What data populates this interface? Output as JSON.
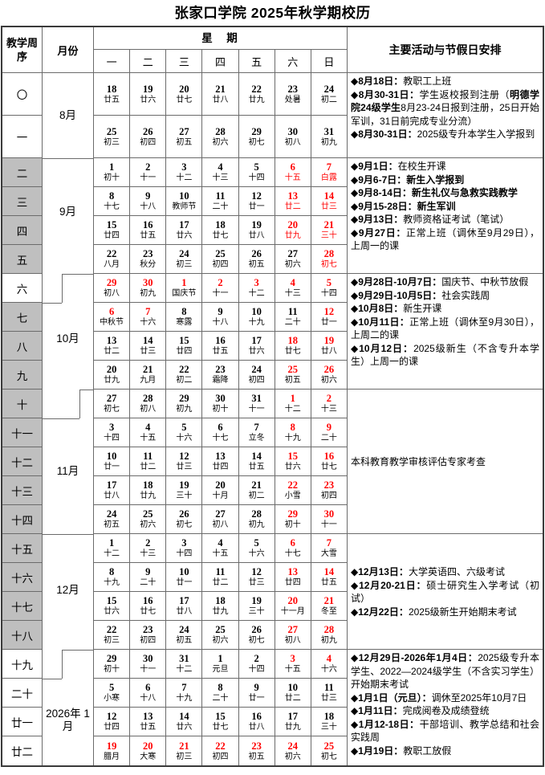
{
  "title": "张家口学院 2025年秋学期校历",
  "header": {
    "week_col": "教学周序",
    "month_col": "月份",
    "week_group": "星　期",
    "days": [
      "一",
      "二",
      "三",
      "四",
      "五",
      "六",
      "日"
    ],
    "activities_col": "主要活动与节假日安排"
  },
  "months": [
    "8月",
    "9月",
    "10月",
    "11月",
    "12月",
    "2026年 1月"
  ],
  "weeks": [
    {
      "num": "〇",
      "shaded": false,
      "days": [
        [
          "18",
          "廿五",
          0
        ],
        [
          "19",
          "廿六",
          0
        ],
        [
          "20",
          "廿七",
          0
        ],
        [
          "21",
          "廿八",
          0
        ],
        [
          "22",
          "廿九",
          0
        ],
        [
          "23",
          "处暑",
          0
        ],
        [
          "24",
          "初二",
          0
        ]
      ]
    },
    {
      "num": "一",
      "shaded": false,
      "days": [
        [
          "25",
          "初三",
          0
        ],
        [
          "26",
          "初四",
          0
        ],
        [
          "27",
          "初五",
          0
        ],
        [
          "28",
          "初六",
          0
        ],
        [
          "29",
          "初七",
          0
        ],
        [
          "30",
          "初八",
          0
        ],
        [
          "31",
          "初九",
          0
        ]
      ]
    },
    {
      "num": "二",
      "shaded": true,
      "days": [
        [
          "1",
          "初十",
          0
        ],
        [
          "2",
          "十一",
          0
        ],
        [
          "3",
          "十二",
          0
        ],
        [
          "4",
          "十三",
          0
        ],
        [
          "5",
          "十四",
          0
        ],
        [
          "6",
          "十五",
          2
        ],
        [
          "7",
          "白露",
          2
        ]
      ]
    },
    {
      "num": "三",
      "shaded": true,
      "days": [
        [
          "8",
          "十七",
          0
        ],
        [
          "9",
          "十八",
          0
        ],
        [
          "10",
          "教师节",
          0
        ],
        [
          "11",
          "二十",
          0
        ],
        [
          "12",
          "廿一",
          0
        ],
        [
          "13",
          "廿二",
          2
        ],
        [
          "14",
          "廿三",
          2
        ]
      ]
    },
    {
      "num": "四",
      "shaded": true,
      "days": [
        [
          "15",
          "廿四",
          0
        ],
        [
          "16",
          "廿五",
          0
        ],
        [
          "17",
          "廿六",
          0
        ],
        [
          "18",
          "廿七",
          0
        ],
        [
          "19",
          "廿八",
          0
        ],
        [
          "20",
          "廿九",
          2
        ],
        [
          "21",
          "三十",
          2
        ]
      ]
    },
    {
      "num": "五",
      "shaded": true,
      "days": [
        [
          "22",
          "八月",
          0
        ],
        [
          "23",
          "秋分",
          0
        ],
        [
          "24",
          "初三",
          0
        ],
        [
          "25",
          "初四",
          0
        ],
        [
          "26",
          "初五",
          0
        ],
        [
          "27",
          "初六",
          0
        ],
        [
          "28",
          "初七",
          2
        ]
      ]
    },
    {
      "num": "六",
      "shaded": false,
      "days": [
        [
          "29",
          "初八",
          1
        ],
        [
          "30",
          "初九",
          1
        ],
        [
          "1",
          "国庆节",
          1
        ],
        [
          "2",
          "十一",
          1
        ],
        [
          "3",
          "十二",
          1
        ],
        [
          "4",
          "十三",
          1
        ],
        [
          "5",
          "十四",
          1
        ]
      ]
    },
    {
      "num": "七",
      "shaded": true,
      "days": [
        [
          "6",
          "中秋节",
          1
        ],
        [
          "7",
          "十六",
          1
        ],
        [
          "8",
          "寒露",
          0
        ],
        [
          "9",
          "十八",
          0
        ],
        [
          "10",
          "十九",
          0
        ],
        [
          "11",
          "二十",
          0
        ],
        [
          "12",
          "廿一",
          1
        ]
      ]
    },
    {
      "num": "八",
      "shaded": true,
      "days": [
        [
          "13",
          "廿二",
          0
        ],
        [
          "14",
          "廿三",
          0
        ],
        [
          "15",
          "廿四",
          0
        ],
        [
          "16",
          "廿五",
          0
        ],
        [
          "17",
          "廿六",
          0
        ],
        [
          "18",
          "廿七",
          1
        ],
        [
          "19",
          "廿八",
          1
        ]
      ]
    },
    {
      "num": "九",
      "shaded": true,
      "days": [
        [
          "20",
          "廿九",
          0
        ],
        [
          "21",
          "九月",
          0
        ],
        [
          "22",
          "初二",
          0
        ],
        [
          "23",
          "霜降",
          0
        ],
        [
          "24",
          "初四",
          0
        ],
        [
          "25",
          "初五",
          1
        ],
        [
          "26",
          "初六",
          1
        ]
      ]
    },
    {
      "num": "十",
      "shaded": true,
      "days": [
        [
          "27",
          "初七",
          0
        ],
        [
          "28",
          "初八",
          0
        ],
        [
          "29",
          "初九",
          0
        ],
        [
          "30",
          "初十",
          0
        ],
        [
          "31",
          "十一",
          0
        ],
        [
          "1",
          "十二",
          1
        ],
        [
          "2",
          "十三",
          1
        ]
      ]
    },
    {
      "num": "十一",
      "shaded": true,
      "days": [
        [
          "3",
          "十四",
          0
        ],
        [
          "4",
          "十五",
          0
        ],
        [
          "5",
          "十六",
          0
        ],
        [
          "6",
          "十七",
          0
        ],
        [
          "7",
          "立冬",
          0
        ],
        [
          "8",
          "十九",
          1
        ],
        [
          "9",
          "二十",
          1
        ]
      ]
    },
    {
      "num": "十二",
      "shaded": true,
      "days": [
        [
          "10",
          "廿一",
          0
        ],
        [
          "11",
          "廿二",
          0
        ],
        [
          "12",
          "廿三",
          0
        ],
        [
          "13",
          "廿四",
          0
        ],
        [
          "14",
          "廿五",
          0
        ],
        [
          "15",
          "廿六",
          1
        ],
        [
          "16",
          "廿七",
          1
        ]
      ]
    },
    {
      "num": "十三",
      "shaded": true,
      "days": [
        [
          "17",
          "廿八",
          0
        ],
        [
          "18",
          "廿九",
          0
        ],
        [
          "19",
          "三十",
          0
        ],
        [
          "20",
          "十月",
          0
        ],
        [
          "21",
          "初二",
          0
        ],
        [
          "22",
          "小雪",
          1
        ],
        [
          "23",
          "初四",
          1
        ]
      ]
    },
    {
      "num": "十四",
      "shaded": true,
      "days": [
        [
          "24",
          "初五",
          0
        ],
        [
          "25",
          "初六",
          0
        ],
        [
          "26",
          "初七",
          0
        ],
        [
          "27",
          "初八",
          0
        ],
        [
          "28",
          "初九",
          0
        ],
        [
          "29",
          "初十",
          1
        ],
        [
          "30",
          "十一",
          1
        ]
      ]
    },
    {
      "num": "十五",
      "shaded": true,
      "days": [
        [
          "1",
          "十二",
          0
        ],
        [
          "2",
          "十三",
          0
        ],
        [
          "3",
          "十四",
          0
        ],
        [
          "4",
          "十五",
          0
        ],
        [
          "5",
          "十六",
          0
        ],
        [
          "6",
          "十七",
          1
        ],
        [
          "7",
          "大雪",
          1
        ]
      ]
    },
    {
      "num": "十六",
      "shaded": true,
      "days": [
        [
          "8",
          "十九",
          0
        ],
        [
          "9",
          "二十",
          0
        ],
        [
          "10",
          "廿一",
          0
        ],
        [
          "11",
          "廿二",
          0
        ],
        [
          "12",
          "廿三",
          0
        ],
        [
          "13",
          "廿四",
          1
        ],
        [
          "14",
          "廿五",
          1
        ]
      ]
    },
    {
      "num": "十七",
      "shaded": true,
      "days": [
        [
          "15",
          "廿六",
          0
        ],
        [
          "16",
          "廿七",
          0
        ],
        [
          "17",
          "廿八",
          0
        ],
        [
          "18",
          "廿九",
          0
        ],
        [
          "19",
          "三十",
          0
        ],
        [
          "20",
          "十一月",
          1
        ],
        [
          "21",
          "冬至",
          1
        ]
      ]
    },
    {
      "num": "十八",
      "shaded": true,
      "days": [
        [
          "22",
          "初三",
          0
        ],
        [
          "23",
          "初四",
          0
        ],
        [
          "24",
          "初五",
          0
        ],
        [
          "25",
          "初六",
          0
        ],
        [
          "26",
          "初七",
          0
        ],
        [
          "27",
          "初八",
          1
        ],
        [
          "28",
          "初九",
          1
        ]
      ]
    },
    {
      "num": "十九",
      "shaded": false,
      "days": [
        [
          "29",
          "初十",
          0
        ],
        [
          "30",
          "十一",
          0
        ],
        [
          "31",
          "十二",
          0
        ],
        [
          "1",
          "元旦",
          0
        ],
        [
          "2",
          "十四",
          0
        ],
        [
          "3",
          "十五",
          1
        ],
        [
          "4",
          "十六",
          1
        ]
      ]
    },
    {
      "num": "二十",
      "shaded": false,
      "days": [
        [
          "5",
          "小寒",
          0
        ],
        [
          "6",
          "十八",
          0
        ],
        [
          "7",
          "十九",
          0
        ],
        [
          "8",
          "二十",
          0
        ],
        [
          "9",
          "廿一",
          0
        ],
        [
          "10",
          "廿二",
          0
        ],
        [
          "11",
          "廿三",
          0
        ]
      ]
    },
    {
      "num": "廿一",
      "shaded": false,
      "days": [
        [
          "12",
          "廿四",
          0
        ],
        [
          "13",
          "廿五",
          0
        ],
        [
          "14",
          "廿六",
          0
        ],
        [
          "15",
          "廿七",
          0
        ],
        [
          "16",
          "廿八",
          0
        ],
        [
          "17",
          "廿九",
          0
        ],
        [
          "18",
          "三十",
          0
        ]
      ]
    },
    {
      "num": "廿二",
      "shaded": false,
      "days": [
        [
          "19",
          "腊月",
          1
        ],
        [
          "20",
          "大寒",
          1
        ],
        [
          "21",
          "初三",
          1
        ],
        [
          "22",
          "初四",
          1
        ],
        [
          "23",
          "初五",
          1
        ],
        [
          "24",
          "初六",
          1
        ],
        [
          "25",
          "初七",
          1
        ]
      ]
    }
  ],
  "activities": [
    {
      "items": [
        {
          "segs": [
            {
              "t": "◆8月18日：",
              "b": true
            },
            {
              "t": "教职工上班",
              "b": false
            }
          ]
        },
        {
          "segs": [
            {
              "t": "◆8月30-31日：",
              "b": true
            },
            {
              "t": "学生返校报到注册（",
              "b": false
            },
            {
              "t": "明德学院24级学生",
              "b": true
            },
            {
              "t": "8月23-24日报到注册，25日开始军训，31日前完成专业分流）",
              "b": false
            }
          ]
        },
        {
          "segs": [
            {
              "t": "◆8月30-31日：",
              "b": true
            },
            {
              "t": "2025级专升本学生入学报到",
              "b": false
            }
          ]
        }
      ]
    },
    {
      "items": [
        {
          "segs": [
            {
              "t": "◆9月1日：",
              "b": true
            },
            {
              "t": "在校生开课",
              "b": false
            }
          ]
        },
        {
          "segs": [
            {
              "t": "◆9月6-7日：",
              "b": true
            },
            {
              "t": "新生入学报到",
              "b": true
            }
          ]
        },
        {
          "segs": [
            {
              "t": "◆9月8-14日：",
              "b": true
            },
            {
              "t": "新生礼仪与急救实践教学",
              "b": true
            }
          ]
        },
        {
          "segs": [
            {
              "t": "◆9月15-28日：",
              "b": true
            },
            {
              "t": "新生军训",
              "b": true
            }
          ]
        },
        {
          "segs": [
            {
              "t": "◆9月13日：",
              "b": true
            },
            {
              "t": "教师资格证考试（笔试）",
              "b": false
            }
          ]
        },
        {
          "segs": [
            {
              "t": "◆9月27日：",
              "b": true
            },
            {
              "t": "正常上班（调休至9月29日），上周一的课",
              "b": false
            }
          ]
        }
      ]
    },
    {
      "items": [
        {
          "segs": [
            {
              "t": "◆9月28日-10月7日：",
              "b": true
            },
            {
              "t": "国庆节、中秋节放假",
              "b": false
            }
          ]
        },
        {
          "segs": [
            {
              "t": "◆9月29日-10月5日：",
              "b": true
            },
            {
              "t": "社会实践周",
              "b": false
            }
          ]
        },
        {
          "segs": [
            {
              "t": "◆10月8日：",
              "b": true
            },
            {
              "t": "新生开课",
              "b": false
            }
          ]
        },
        {
          "segs": [
            {
              "t": "◆10月11日：",
              "b": true
            },
            {
              "t": "正常上班（调休至9月30日），上周二的课",
              "b": false
            }
          ]
        },
        {
          "segs": [
            {
              "t": "◆10月12日：",
              "b": true
            },
            {
              "t": "2025级新生（不含专升本学生）上周一的课",
              "b": false
            }
          ]
        }
      ]
    },
    {
      "items": [
        {
          "segs": [
            {
              "t": "本科教育教学审核评估专家考查",
              "b": false
            }
          ]
        }
      ]
    },
    {
      "items": [
        {
          "segs": [
            {
              "t": "◆12月13日：",
              "b": true
            },
            {
              "t": "大学英语四、六级考试",
              "b": false
            }
          ]
        },
        {
          "segs": [
            {
              "t": "◆12月20-21日：",
              "b": true
            },
            {
              "t": "硕士研究生入学考试（初试）",
              "b": false
            }
          ]
        },
        {
          "segs": [
            {
              "t": "◆12月22日：",
              "b": true
            },
            {
              "t": "2025级新生开始期末考试",
              "b": false
            }
          ]
        }
      ]
    },
    {
      "items": [
        {
          "segs": [
            {
              "t": "◆12月29日-2026年1月4日：",
              "b": true
            },
            {
              "t": "2025级专升本学生、2022—2024级学生（不含实习学生）开始期末考试",
              "b": false
            }
          ]
        },
        {
          "segs": [
            {
              "t": "◆1月1日（元旦）：",
              "b": true
            },
            {
              "t": "调休至2025年10月7日",
              "b": false
            }
          ]
        },
        {
          "segs": [
            {
              "t": "◆1月11日：",
              "b": true
            },
            {
              "t": "完成阅卷及成绩登统",
              "b": false
            }
          ]
        },
        {
          "segs": [
            {
              "t": "◆1月12-18日：",
              "b": true
            },
            {
              "t": "干部培训、教学总结和社会实践周",
              "b": false
            }
          ]
        },
        {
          "segs": [
            {
              "t": "◆1月19日：",
              "b": true
            },
            {
              "t": "教职工放假",
              "b": false
            }
          ]
        }
      ]
    }
  ],
  "colors": {
    "red": "#ff0000",
    "gray": "#bfbfbf",
    "border": "#6b6b6b"
  }
}
